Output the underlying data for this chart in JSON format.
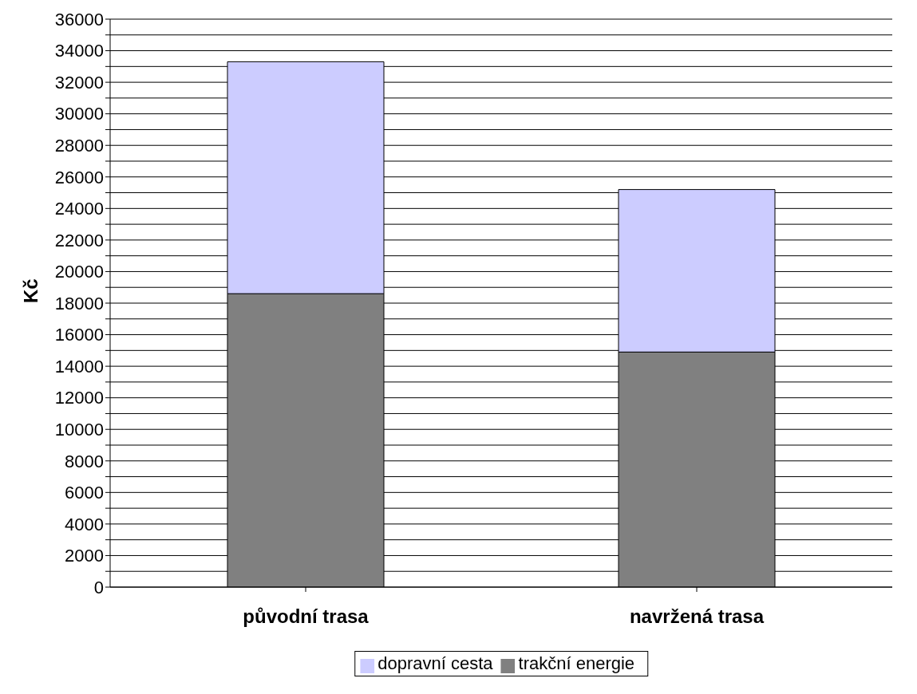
{
  "chart_data": {
    "type": "bar",
    "stacked": true,
    "ylabel": "Kč",
    "categories": [
      "původní trasa",
      "navržená trasa"
    ],
    "series": [
      {
        "name": "trakční energie",
        "color": "#808080",
        "values": [
          18600,
          14900
        ]
      },
      {
        "name": "dopravní cesta",
        "color": "#ccccff",
        "values": [
          14700,
          10300
        ]
      }
    ],
    "ylim": [
      0,
      36000
    ],
    "yticks": [
      0,
      {
        "value": 1000,
        "label": null
      },
      2000,
      {
        "value": 3000,
        "label": null
      },
      4000,
      {
        "value": 5000,
        "label": null
      },
      6000,
      {
        "value": 7000,
        "label": null
      },
      8000,
      {
        "value": 9000,
        "label": null
      },
      10000,
      {
        "value": 11000,
        "label": null
      },
      12000,
      {
        "value": 13000,
        "label": null
      },
      14000,
      {
        "value": 15000,
        "label": null
      },
      16000,
      {
        "value": 17000,
        "label": null
      },
      18000,
      {
        "value": 19000,
        "label": null
      },
      20000,
      {
        "value": 21000,
        "label": null
      },
      22000,
      {
        "value": 23000,
        "label": null
      },
      24000,
      {
        "value": 25000,
        "label": null
      },
      26000,
      {
        "value": 27000,
        "label": null
      },
      28000,
      {
        "value": 29000,
        "label": null
      },
      30000,
      {
        "value": 31000,
        "label": null
      },
      32000,
      {
        "value": 33000,
        "label": null
      },
      34000,
      {
        "value": 35000,
        "label": null
      },
      36000
    ],
    "grid": "y",
    "legend": "bottom"
  }
}
